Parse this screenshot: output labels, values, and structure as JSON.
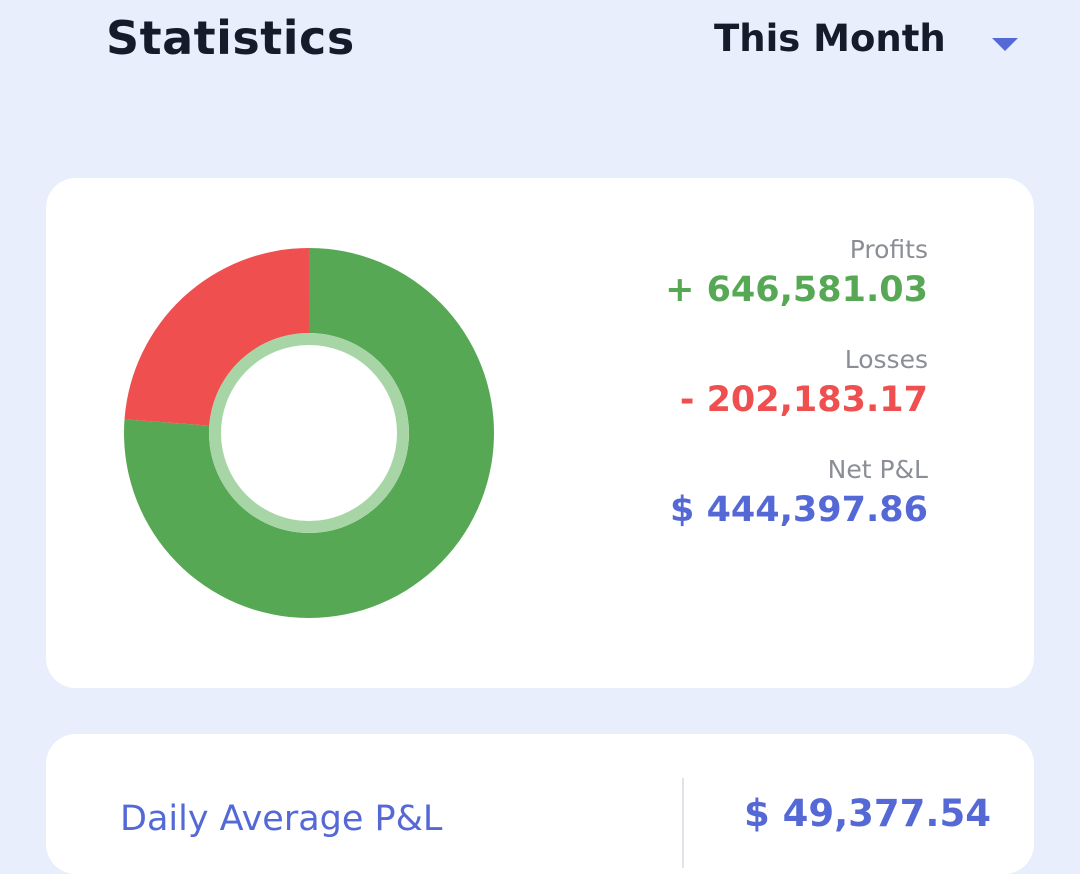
{
  "header": {
    "title": "Statistics",
    "period": "This Month"
  },
  "summary": {
    "profits_label": "Profits",
    "profits_value": "+ 646,581.03",
    "losses_label": "Losses",
    "losses_value": "- 202,183.17",
    "net_label": "Net P&L",
    "net_value": "$ 444,397.86"
  },
  "donut": {
    "profit_amount": 646581.03,
    "loss_amount": 202183.17
  },
  "daily": {
    "label": "Daily Average P&L",
    "value": "$ 49,377.54"
  },
  "colors": {
    "profit": "#56a854",
    "loss": "#ef4f4f",
    "accent": "#5569d6",
    "background": "#e8eefb"
  },
  "icons": {
    "period_dropdown": "chevron-down-icon"
  }
}
